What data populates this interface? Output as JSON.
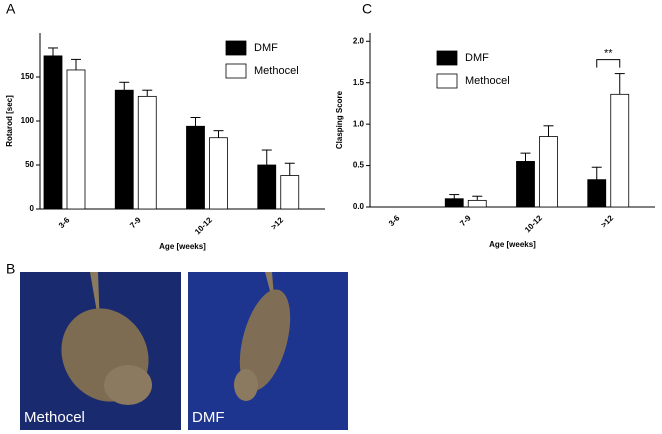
{
  "panels": [
    "A",
    "B",
    "C"
  ],
  "photos": [
    {
      "caption": "Methocel"
    },
    {
      "caption": "DMF"
    }
  ],
  "chart_data": [
    {
      "type": "bar",
      "xlabel": "Age [weeks]",
      "ylabel": "Rotarod [sec]",
      "categories": [
        "3-6",
        "7-9",
        "10-12",
        ">12"
      ],
      "series": [
        {
          "name": "DMF",
          "color": "#000000",
          "values": [
            174,
            135,
            94,
            50
          ],
          "errors": [
            9,
            9,
            10,
            17
          ]
        },
        {
          "name": "Methocel",
          "color": "#ffffff",
          "values": [
            158,
            128,
            81,
            38
          ],
          "errors": [
            12,
            7,
            8,
            14
          ]
        }
      ],
      "ylim": [
        0,
        200
      ],
      "yticks": [
        0,
        50,
        100,
        150
      ],
      "legend": "upper right"
    },
    {
      "type": "bar",
      "xlabel": "Age [weeks]",
      "ylabel": "Clasping Score",
      "categories": [
        "3-6",
        "7-9",
        "10-12",
        ">12"
      ],
      "series": [
        {
          "name": "DMF",
          "color": "#000000",
          "values": [
            0,
            0.1,
            0.55,
            0.33
          ],
          "errors": [
            0,
            0.05,
            0.1,
            0.15
          ]
        },
        {
          "name": "Methocel",
          "color": "#ffffff",
          "values": [
            0,
            0.08,
            0.85,
            1.36
          ],
          "errors": [
            0,
            0.05,
            0.13,
            0.25
          ]
        }
      ],
      "ylim": [
        0,
        2.1
      ],
      "yticks": [
        {
          "value": 0,
          "label": "0.0"
        },
        0.5,
        {
          "value": 1,
          "label": "1.0"
        },
        1.5,
        {
          "value": 2,
          "label": "2.0"
        }
      ],
      "annotation": "**",
      "legend": "upper left"
    }
  ]
}
